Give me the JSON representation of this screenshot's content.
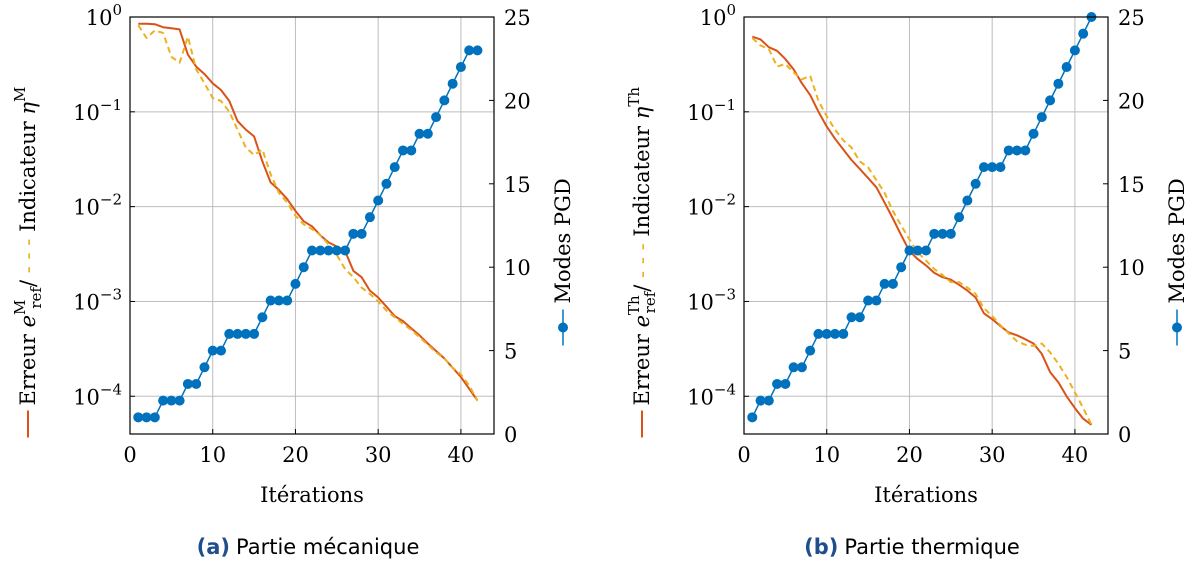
{
  "chart_data": [
    {
      "type": "line",
      "caption_tag": "(a)",
      "caption": "Partie mécanique",
      "xlabel": "Itérations",
      "ylabel_left_prefix": "Erreur ",
      "ylabel_left_sep": "/",
      "ylabel_left_e": "e",
      "ylabel_left_sup": "M",
      "ylabel_left_sub": "ref",
      "ylabel_left_mid": " Indicateur ",
      "ylabel_left_eta": "η",
      "ylabel_left_eta_sup": "M",
      "ylabel_right": "Modes PGD",
      "xlim": [
        0,
        44
      ],
      "xticks": [
        "0",
        "10",
        "20",
        "30",
        "40"
      ],
      "ylim_left": [
        4e-05,
        1
      ],
      "yscale_left": "log",
      "yticks_left": [
        {
          "base": "10",
          "exp": "0"
        },
        {
          "base": "10",
          "exp": "−1"
        },
        {
          "base": "10",
          "exp": "−2"
        },
        {
          "base": "10",
          "exp": "−3"
        },
        {
          "base": "10",
          "exp": "−4"
        }
      ],
      "ylim_right": [
        0,
        25
      ],
      "yticks_right": [
        "0",
        "5",
        "10",
        "15",
        "20",
        "25"
      ],
      "grid": true,
      "colors": {
        "error": "#d95319",
        "indicator": "#edb120",
        "modes": "#0072bd"
      },
      "x": [
        1,
        2,
        3,
        4,
        5,
        6,
        7,
        8,
        9,
        10,
        11,
        12,
        13,
        14,
        15,
        16,
        17,
        18,
        19,
        20,
        21,
        22,
        23,
        24,
        25,
        26,
        27,
        28,
        29,
        30,
        31,
        32,
        33,
        34,
        35,
        36,
        37,
        38,
        39,
        40,
        41,
        42
      ],
      "series": [
        {
          "name": "Erreur",
          "axis": "left",
          "style": "solid",
          "values": [
            0.85,
            0.85,
            0.84,
            0.78,
            0.76,
            0.74,
            0.4,
            0.3,
            0.25,
            0.2,
            0.17,
            0.13,
            0.08,
            0.065,
            0.055,
            0.03,
            0.018,
            0.015,
            0.012,
            0.009,
            0.007,
            0.0062,
            0.005,
            0.0042,
            0.0038,
            0.0034,
            0.0021,
            0.0018,
            0.0013,
            0.0011,
            0.00088,
            0.0007,
            0.00062,
            0.00052,
            0.00044,
            0.00036,
            0.0003,
            0.00025,
            0.0002,
            0.00016,
            0.00012,
            9e-05
          ]
        },
        {
          "name": "Indicateur",
          "axis": "left",
          "style": "dashed",
          "values": [
            0.82,
            0.6,
            0.72,
            0.68,
            0.38,
            0.33,
            0.62,
            0.28,
            0.2,
            0.14,
            0.13,
            0.1,
            0.065,
            0.042,
            0.035,
            0.04,
            0.022,
            0.014,
            0.011,
            0.008,
            0.0065,
            0.0058,
            0.005,
            0.004,
            0.0031,
            0.0022,
            0.0018,
            0.0014,
            0.0012,
            0.001,
            0.0008,
            0.00068,
            0.00058,
            0.0005,
            0.00042,
            0.00035,
            0.00029,
            0.00025,
            0.0002,
            0.00017,
            0.00013,
            9e-05
          ]
        },
        {
          "name": "Modes PGD",
          "axis": "right",
          "style": "markers",
          "values": [
            1,
            1,
            1,
            2,
            2,
            2,
            3,
            3,
            4,
            5,
            5,
            6,
            6,
            6,
            6,
            7,
            8,
            8,
            8,
            9,
            10,
            11,
            11,
            11,
            11,
            11,
            12,
            12,
            13,
            14,
            15,
            16,
            17,
            17,
            18,
            18,
            19,
            20,
            21,
            22,
            23,
            23
          ]
        }
      ]
    },
    {
      "type": "line",
      "caption_tag": "(b)",
      "caption": "Partie thermique",
      "xlabel": "Itérations",
      "ylabel_left_prefix": "Erreur ",
      "ylabel_left_sep": "/",
      "ylabel_left_e": "e",
      "ylabel_left_sup": "Th",
      "ylabel_left_sub": "ref",
      "ylabel_left_mid": " Indicateur ",
      "ylabel_left_eta": "η",
      "ylabel_left_eta_sup": "Th",
      "ylabel_right": "Modes PGD",
      "xlim": [
        0,
        44
      ],
      "xticks": [
        "0",
        "10",
        "20",
        "30",
        "40"
      ],
      "ylim_left": [
        4e-05,
        1
      ],
      "yscale_left": "log",
      "yticks_left": [
        {
          "base": "10",
          "exp": "0"
        },
        {
          "base": "10",
          "exp": "−1"
        },
        {
          "base": "10",
          "exp": "−2"
        },
        {
          "base": "10",
          "exp": "−3"
        },
        {
          "base": "10",
          "exp": "−4"
        }
      ],
      "ylim_right": [
        0,
        25
      ],
      "yticks_right": [
        "0",
        "5",
        "10",
        "15",
        "20",
        "25"
      ],
      "grid": true,
      "colors": {
        "error": "#d95319",
        "indicator": "#edb120",
        "modes": "#0072bd"
      },
      "x": [
        1,
        2,
        3,
        4,
        5,
        6,
        7,
        8,
        9,
        10,
        11,
        12,
        13,
        14,
        15,
        16,
        17,
        18,
        19,
        20,
        21,
        22,
        23,
        24,
        25,
        26,
        27,
        28,
        29,
        30,
        31,
        32,
        33,
        34,
        35,
        36,
        37,
        38,
        39,
        40,
        41,
        42
      ],
      "series": [
        {
          "name": "Erreur",
          "axis": "left",
          "style": "solid",
          "values": [
            0.62,
            0.58,
            0.48,
            0.44,
            0.36,
            0.28,
            0.2,
            0.15,
            0.1,
            0.07,
            0.052,
            0.04,
            0.031,
            0.025,
            0.02,
            0.016,
            0.011,
            0.0075,
            0.005,
            0.0034,
            0.0028,
            0.0024,
            0.002,
            0.0018,
            0.0017,
            0.0015,
            0.0013,
            0.0011,
            0.00075,
            0.00065,
            0.00055,
            0.00047,
            0.00044,
            0.0004,
            0.00036,
            0.00028,
            0.00018,
            0.00014,
            0.0001,
            7.5e-05,
            5.8e-05,
            5e-05
          ]
        },
        {
          "name": "Indicateur",
          "axis": "left",
          "style": "dashed",
          "values": [
            0.6,
            0.5,
            0.46,
            0.3,
            0.32,
            0.26,
            0.22,
            0.24,
            0.13,
            0.09,
            0.065,
            0.05,
            0.042,
            0.03,
            0.026,
            0.019,
            0.014,
            0.009,
            0.0063,
            0.0045,
            0.0033,
            0.0027,
            0.0022,
            0.0019,
            0.0016,
            0.0016,
            0.0014,
            0.0012,
            0.00085,
            0.0007,
            0.00056,
            0.00046,
            0.00038,
            0.00035,
            0.00034,
            0.00036,
            0.00029,
            0.00022,
            0.00016,
            0.00011,
            7.5e-05,
            5e-05
          ]
        },
        {
          "name": "Modes PGD",
          "axis": "right",
          "style": "markers",
          "values": [
            1,
            2,
            2,
            3,
            3,
            4,
            4,
            5,
            6,
            6,
            6,
            6,
            7,
            7,
            8,
            8,
            9,
            9,
            10,
            11,
            11,
            11,
            12,
            12,
            12,
            13,
            14,
            15,
            16,
            16,
            16,
            17,
            17,
            17,
            18,
            19,
            20,
            21,
            22,
            23,
            24,
            25
          ]
        }
      ]
    }
  ]
}
